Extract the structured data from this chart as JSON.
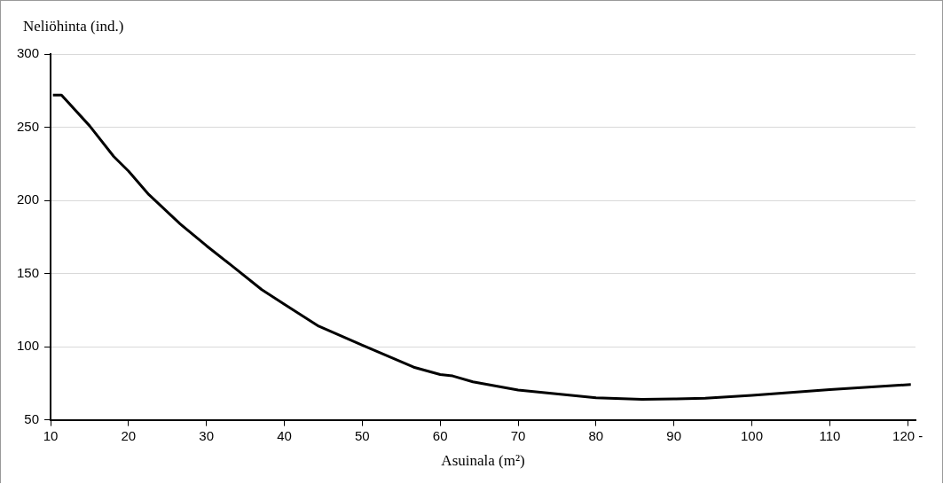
{
  "chart_data": {
    "type": "line",
    "xlabel": "Asuinala (m²)",
    "ylabel": "Neliöhinta (ind.)",
    "x": [
      10.3,
      11.4,
      15,
      18.1,
      20,
      22.6,
      26.6,
      30,
      33.1,
      37.1,
      40,
      44.4,
      50,
      56.6,
      60,
      61.6,
      64.2,
      70,
      80,
      85.9,
      90,
      94,
      100,
      110,
      120.4
    ],
    "series": [
      {
        "color": "#000000",
        "values": [
          272,
          272,
          251,
          230,
          220,
          204,
          184,
          169,
          156,
          139,
          129,
          114,
          101,
          86,
          81,
          80,
          76,
          70.4,
          65,
          64,
          64.3,
          64.8,
          66.7,
          70.7,
          74.1
        ]
      }
    ],
    "xlim": [
      10,
      121
    ],
    "xticks": [
      10,
      20,
      30,
      40,
      50,
      60,
      70,
      80,
      90,
      100,
      110,
      {
        "value": 120,
        "label": "120 -"
      }
    ],
    "ylim": [
      50,
      300
    ],
    "yticks": [
      50,
      100,
      150,
      200,
      250,
      300
    ],
    "grid": "y",
    "legend": false,
    "marker": "none",
    "line_style": "solid"
  }
}
